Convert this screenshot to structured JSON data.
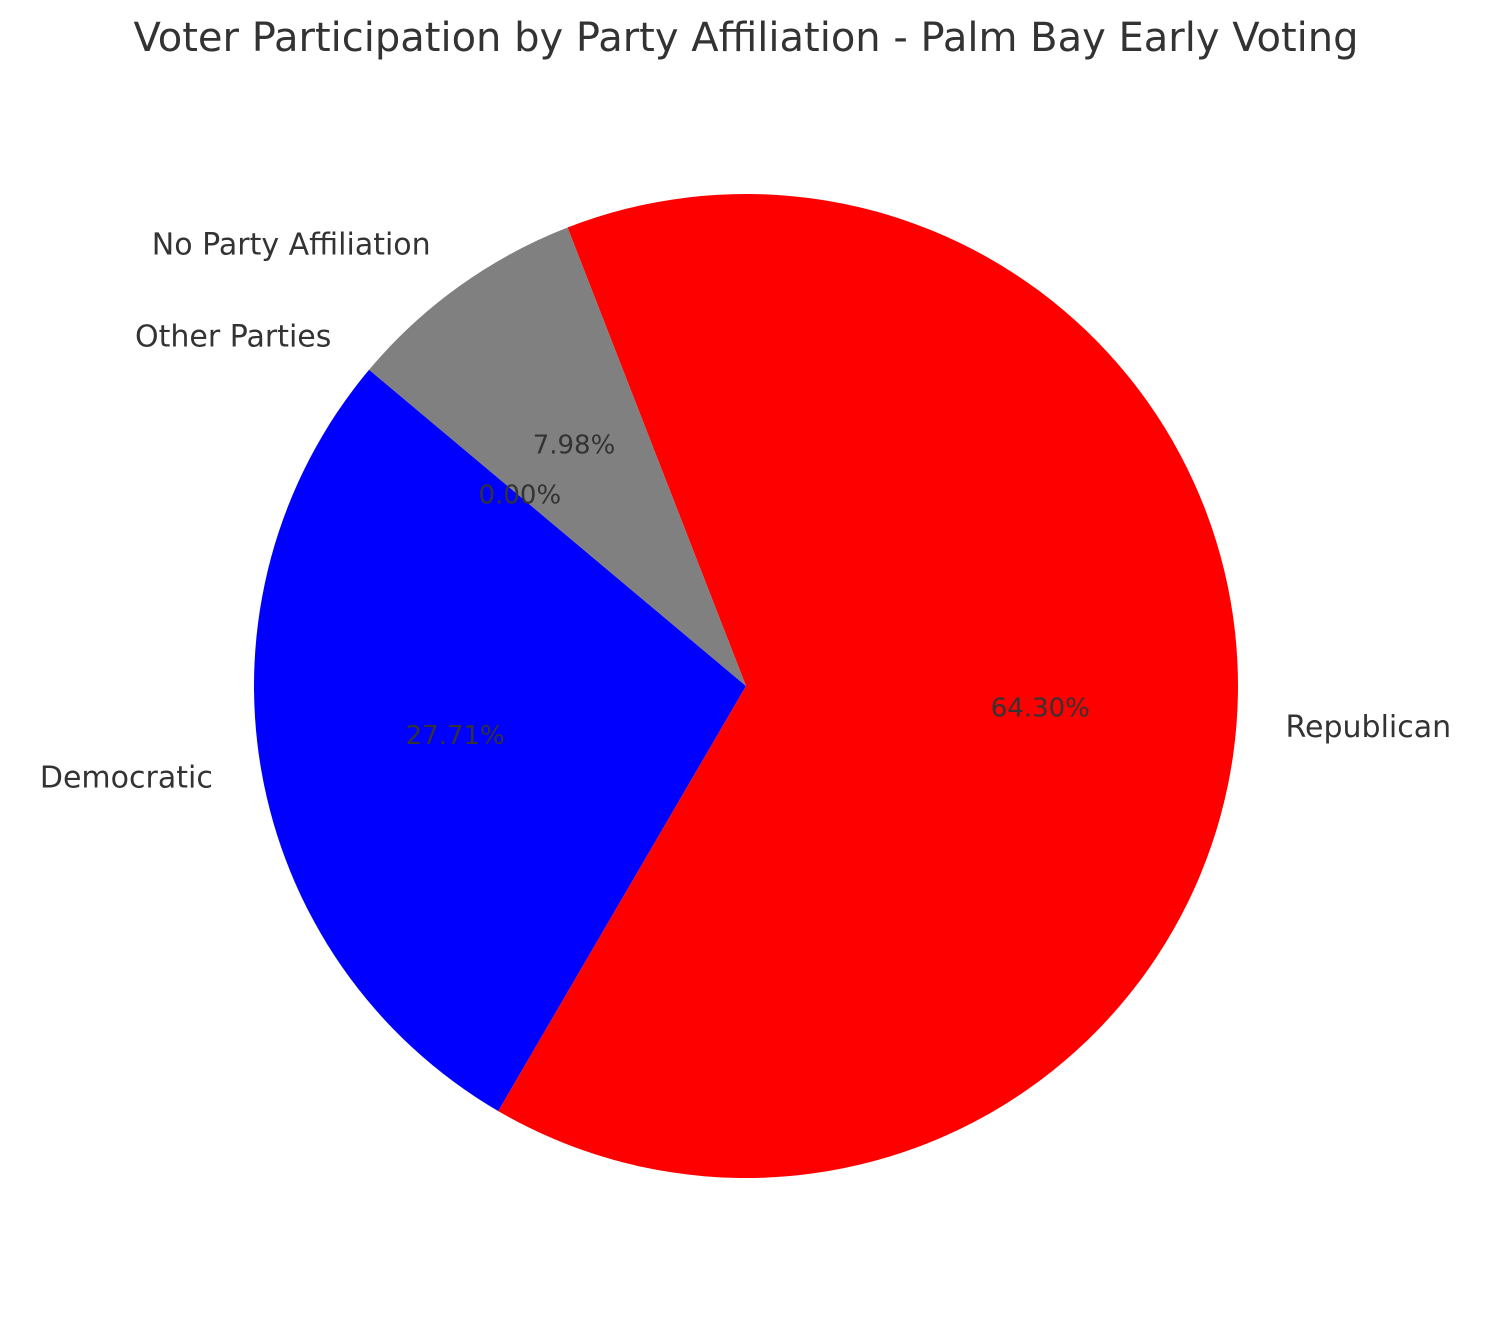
{
  "chart_data": {
    "type": "pie",
    "title": "Voter Participation by Party Affiliation - Palm Bay Early Voting",
    "categories": [
      "Democratic",
      "Republican",
      "No Party Affiliation",
      "Other Parties"
    ],
    "values": [
      27.71,
      64.3,
      7.98,
      0.0
    ],
    "value_labels": [
      "27.71%",
      "64.30%",
      "7.98%",
      "0.00%"
    ],
    "colors": [
      "#0000ff",
      "#ff0000",
      "#808080",
      "#008000"
    ]
  }
}
